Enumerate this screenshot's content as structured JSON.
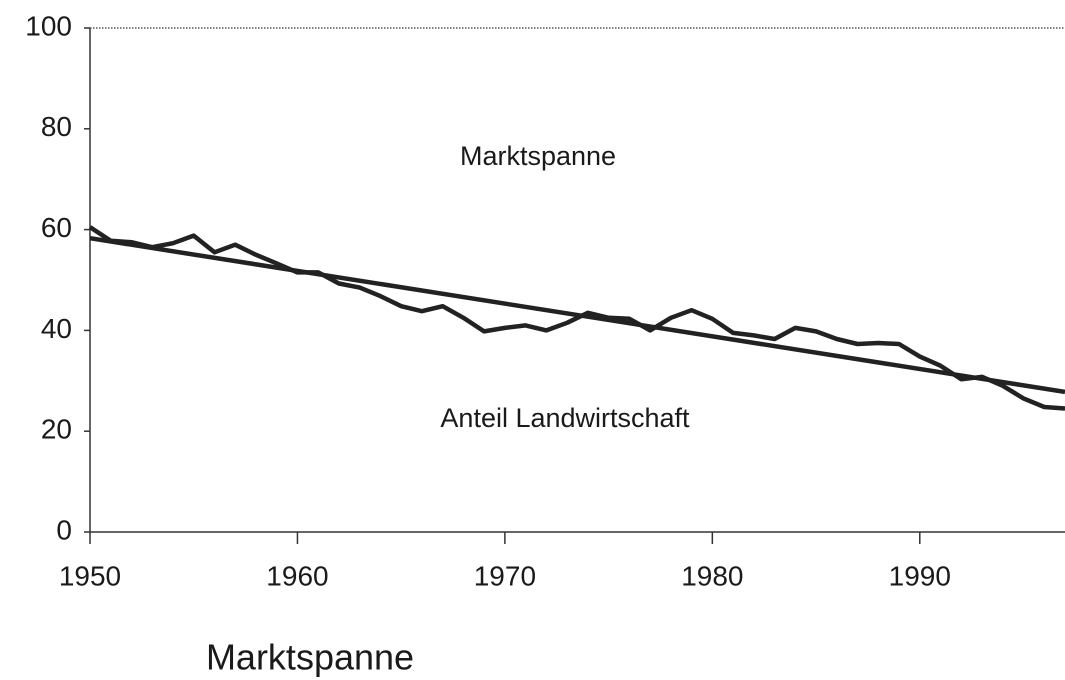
{
  "chart_data": {
    "type": "line",
    "annotations": [
      "Marktspanne",
      "Anteil Landwirtschaft"
    ],
    "caption": "Marktspanne",
    "x": [
      1950,
      1951,
      1952,
      1953,
      1954,
      1955,
      1956,
      1957,
      1958,
      1959,
      1960,
      1961,
      1962,
      1963,
      1964,
      1965,
      1966,
      1967,
      1968,
      1969,
      1970,
      1971,
      1972,
      1973,
      1974,
      1975,
      1976,
      1977,
      1978,
      1979,
      1980,
      1981,
      1982,
      1983,
      1984,
      1985,
      1986,
      1987,
      1988,
      1989,
      1990,
      1991,
      1992,
      1993,
      1994,
      1995,
      1996,
      1997
    ],
    "series": [
      {
        "color": "#222222",
        "values": [
          60.5,
          57.8,
          57.5,
          56.5,
          57.3,
          58.8,
          55.5,
          57,
          55,
          53.3,
          51.5,
          51.5,
          49.3,
          48.5,
          46.8,
          44.8,
          43.8,
          44.8,
          42.5,
          39.8,
          40.5,
          41,
          40,
          41.5,
          43.5,
          42.5,
          42.3,
          40,
          42.5,
          44,
          42.3,
          39.5,
          39,
          38.3,
          40.5,
          39.8,
          38.3,
          37.3,
          37.5,
          37.3,
          34.8,
          33,
          30.3,
          30.8,
          29,
          26.5,
          24.8,
          24.5
        ]
      },
      {
        "color": "#222222",
        "x": [
          1950,
          1997
        ],
        "values": [
          58.3,
          27.8
        ]
      }
    ],
    "xlim": [
      1950,
      1997
    ],
    "ylim": [
      0,
      100
    ],
    "xticks": [
      1950,
      1960,
      1970,
      1980,
      1990
    ],
    "yticks": [
      0,
      20,
      40,
      60,
      80,
      100
    ]
  }
}
